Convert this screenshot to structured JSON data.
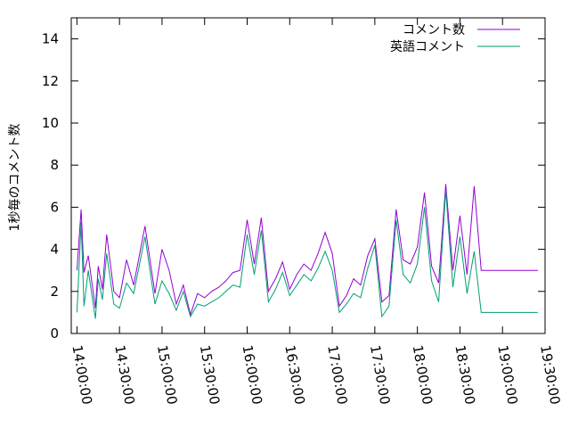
{
  "chart_data": {
    "type": "line",
    "xlabel": "",
    "ylabel": "1秒毎のコメント数",
    "ylim": [
      0,
      15
    ],
    "xlim": [
      "13:56:00",
      "19:30:00"
    ],
    "xticks": [
      "14:00:00",
      "14:30:00",
      "15:00:00",
      "15:30:00",
      "16:00:00",
      "16:30:00",
      "17:00:00",
      "17:30:00",
      "18:00:00",
      "18:30:00",
      "19:00:00",
      "19:30:00"
    ],
    "yticks": [
      0,
      2,
      4,
      6,
      8,
      10,
      12,
      14
    ],
    "legend_position": "top-right",
    "grid": false,
    "series": [
      {
        "name": "コメント数",
        "color": "#9400d3",
        "x": [
          "14:00:00",
          "14:03:00",
          "14:05:00",
          "14:08:00",
          "14:13:00",
          "14:15:00",
          "14:18:00",
          "14:21:00",
          "14:26:00",
          "14:30:00",
          "14:35:00",
          "14:40:00",
          "14:48:00",
          "14:55:00",
          "15:00:00",
          "15:05:00",
          "15:10:00",
          "15:15:00",
          "15:20:00",
          "15:25:00",
          "15:30:00",
          "15:35:00",
          "15:40:00",
          "15:45:00",
          "15:50:00",
          "15:55:00",
          "16:00:00",
          "16:05:00",
          "16:10:00",
          "16:15:00",
          "16:20:00",
          "16:25:00",
          "16:30:00",
          "16:35:00",
          "16:40:00",
          "16:45:00",
          "16:50:00",
          "16:55:00",
          "17:00:00",
          "17:05:00",
          "17:10:00",
          "17:15:00",
          "17:20:00",
          "17:25:00",
          "17:30:00",
          "17:35:00",
          "17:40:00",
          "17:45:00",
          "17:50:00",
          "17:55:00",
          "18:00:00",
          "18:05:00",
          "18:10:00",
          "18:15:00",
          "18:20:00",
          "18:25:00",
          "18:30:00",
          "18:35:00",
          "18:40:00",
          "18:45:00",
          "18:50:00",
          "18:55:00",
          "19:00:00",
          "19:03:00",
          "19:06:00",
          "19:10:00",
          "19:15:00",
          "19:20:00",
          "19:25:00"
        ],
        "values": [
          3.0,
          5.9,
          2.9,
          3.7,
          1.2,
          3.2,
          2.1,
          4.7,
          2.0,
          1.7,
          3.5,
          2.3,
          5.1,
          1.9,
          4.0,
          3.0,
          1.4,
          2.3,
          0.9,
          1.9,
          1.7,
          2.0,
          2.2,
          2.5,
          2.9,
          3.0,
          5.4,
          3.3,
          5.5,
          2.0,
          2.6,
          3.4,
          2.1,
          2.8,
          3.3,
          3.0,
          3.8,
          4.8,
          3.8,
          1.3,
          1.8,
          2.6,
          2.3,
          3.7,
          4.5,
          1.5,
          1.8,
          5.9,
          3.5,
          3.3,
          4.1,
          6.7,
          3.2,
          2.4,
          7.1,
          3.0,
          5.6,
          2.8,
          7.0,
          3.0,
          3.0,
          3.0,
          3.0,
          3.0,
          3.0,
          3.0,
          3.0,
          3.0,
          3.0
        ]
      },
      {
        "name": "英語コメント",
        "color": "#009e73",
        "x": [
          "14:00:00",
          "14:03:00",
          "14:05:00",
          "14:08:00",
          "14:13:00",
          "14:15:00",
          "14:18:00",
          "14:21:00",
          "14:26:00",
          "14:30:00",
          "14:35:00",
          "14:40:00",
          "14:48:00",
          "14:55:00",
          "15:00:00",
          "15:05:00",
          "15:10:00",
          "15:15:00",
          "15:20:00",
          "15:25:00",
          "15:30:00",
          "15:35:00",
          "15:40:00",
          "15:45:00",
          "15:50:00",
          "15:55:00",
          "16:00:00",
          "16:05:00",
          "16:10:00",
          "16:15:00",
          "16:20:00",
          "16:25:00",
          "16:30:00",
          "16:35:00",
          "16:40:00",
          "16:45:00",
          "16:50:00",
          "16:55:00",
          "17:00:00",
          "17:05:00",
          "17:10:00",
          "17:15:00",
          "17:20:00",
          "17:25:00",
          "17:30:00",
          "17:35:00",
          "17:40:00",
          "17:45:00",
          "17:50:00",
          "17:55:00",
          "18:00:00",
          "18:05:00",
          "18:10:00",
          "18:15:00",
          "18:20:00",
          "18:25:00",
          "18:30:00",
          "18:35:00",
          "18:40:00",
          "18:45:00",
          "18:50:00",
          "18:55:00",
          "19:00:00",
          "19:03:00",
          "19:06:00",
          "19:10:00",
          "19:15:00",
          "19:20:00",
          "19:25:00"
        ],
        "values": [
          1.0,
          5.3,
          1.3,
          3.0,
          0.7,
          2.6,
          1.6,
          3.8,
          1.4,
          1.2,
          2.4,
          1.9,
          4.6,
          1.4,
          2.5,
          1.9,
          1.1,
          2.0,
          0.8,
          1.4,
          1.3,
          1.5,
          1.7,
          2.0,
          2.3,
          2.2,
          4.7,
          2.8,
          4.9,
          1.5,
          2.1,
          2.9,
          1.8,
          2.3,
          2.8,
          2.5,
          3.1,
          3.9,
          3.0,
          1.0,
          1.4,
          1.9,
          1.7,
          3.1,
          4.2,
          0.8,
          1.3,
          5.4,
          2.8,
          2.4,
          3.3,
          6.0,
          2.5,
          1.5,
          6.8,
          2.2,
          4.6,
          1.9,
          3.9,
          1.0,
          1.0,
          1.0,
          1.0,
          1.0,
          1.0,
          1.0,
          1.0,
          1.0,
          1.0
        ]
      }
    ]
  }
}
